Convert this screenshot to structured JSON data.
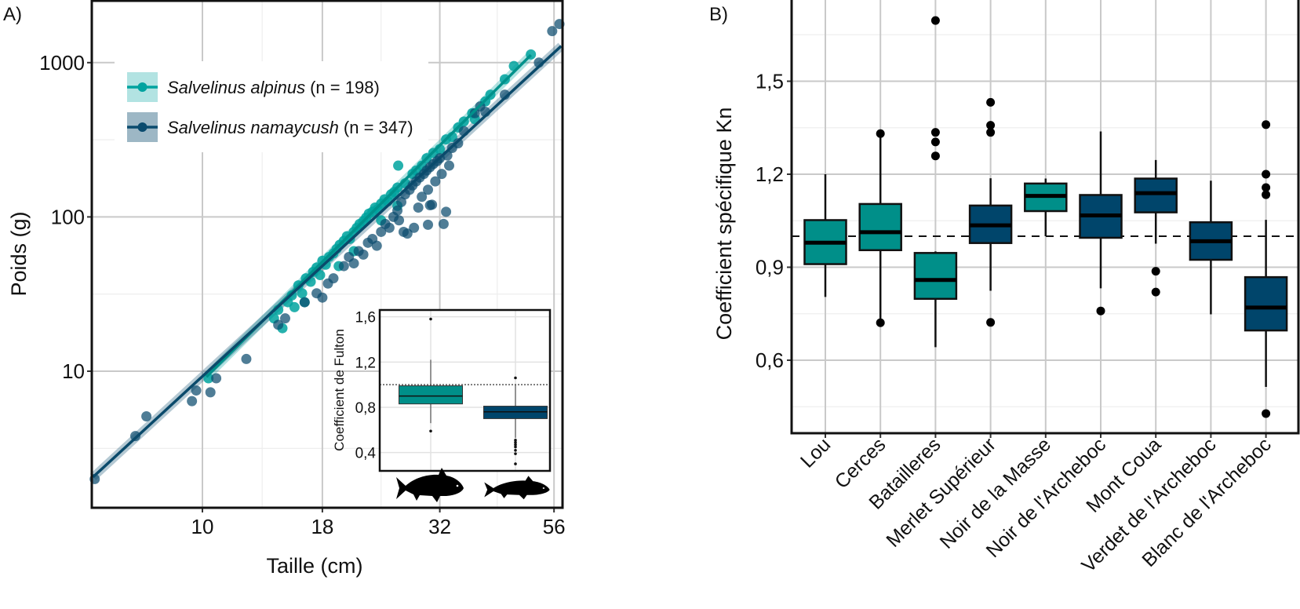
{
  "panel_labels": {
    "a": "A)",
    "b": "B)"
  },
  "colors": {
    "alpinus": "#00a39f",
    "namaycush": "#0b4b6e",
    "box_teal": "#008f89",
    "box_dark": "#00456b",
    "grid": "#c9c9c9"
  },
  "chart_data": [
    {
      "type": "scatter",
      "panel": "A",
      "xlabel": "Taille (cm)",
      "ylabel": "Poids (g)",
      "x_scale": "log",
      "y_scale": "log",
      "x_ticks": [
        10,
        18,
        32,
        56
      ],
      "x_tick_labels": [
        "10",
        "18",
        "32",
        "56"
      ],
      "y_ticks": [
        10,
        100,
        1000
      ],
      "y_tick_labels": [
        "10",
        "100",
        "1000"
      ],
      "grid": true,
      "legend_position": "top-left",
      "series": [
        {
          "name": "Salvelinus alpinus",
          "n_label": "(n = 198)",
          "color": "#00a39f",
          "fit": {
            "from": [
              10.2,
              9.2
            ],
            "to": [
              50,
              1120
            ]
          },
          "points": [
            [
              10.3,
              9
            ],
            [
              14.2,
              22
            ],
            [
              14.5,
              25
            ],
            [
              14.8,
              19
            ],
            [
              15.2,
              28
            ],
            [
              15.5,
              31
            ],
            [
              15.7,
              26
            ],
            [
              16,
              36
            ],
            [
              16.3,
              32
            ],
            [
              16.5,
              28
            ],
            [
              16.6,
              40
            ],
            [
              17,
              38
            ],
            [
              17.2,
              44
            ],
            [
              17.5,
              47
            ],
            [
              17.8,
              42
            ],
            [
              18,
              52
            ],
            [
              18.3,
              49
            ],
            [
              18.6,
              55
            ],
            [
              19,
              58
            ],
            [
              19.3,
              62
            ],
            [
              19.5,
              48
            ],
            [
              19.6,
              66
            ],
            [
              20,
              70
            ],
            [
              20.3,
              75
            ],
            [
              20.6,
              72
            ],
            [
              21,
              80
            ],
            [
              21,
              60
            ],
            [
              21.3,
              85
            ],
            [
              21.6,
              90
            ],
            [
              22,
              94
            ],
            [
              22.3,
              99
            ],
            [
              22.6,
              105
            ],
            [
              23,
              108
            ],
            [
              23.3,
              115
            ],
            [
              23.6,
              112
            ],
            [
              24,
              122
            ],
            [
              24,
              95
            ],
            [
              24.4,
              130
            ],
            [
              24.8,
              126
            ],
            [
              25.2,
              140
            ],
            [
              25.6,
              145
            ],
            [
              26,
              155
            ],
            [
              26,
              118
            ],
            [
              26.1,
              215
            ],
            [
              27,
              165
            ],
            [
              28,
              190
            ],
            [
              28.5,
              200
            ],
            [
              29.3,
              215
            ],
            [
              30,
              240
            ],
            [
              31,
              260
            ],
            [
              32,
              275
            ],
            [
              33,
              318
            ],
            [
              34,
              330
            ],
            [
              35,
              380
            ],
            [
              36,
              415
            ],
            [
              37.5,
              470
            ],
            [
              38,
              430
            ],
            [
              40,
              560
            ],
            [
              41,
              620
            ],
            [
              44,
              780
            ],
            [
              46,
              950
            ],
            [
              50,
              1130
            ]
          ]
        },
        {
          "name": "Salvelinus namaycush",
          "n_label": "(n = 347)",
          "color": "#0b4b6e",
          "fit": {
            "from": [
              5.85,
              2.06
            ],
            "to": [
              58,
              1280
            ]
          },
          "points": [
            [
              5.9,
              2
            ],
            [
              7.2,
              3.8
            ],
            [
              7.6,
              5.1
            ],
            [
              9.5,
              6.4
            ],
            [
              9.7,
              7.5
            ],
            [
              10.4,
              7.3
            ],
            [
              10.7,
              9
            ],
            [
              12.4,
              12
            ],
            [
              14.5,
              20
            ],
            [
              15,
              22
            ],
            [
              16.5,
              28
            ],
            [
              17.5,
              32
            ],
            [
              18,
              30
            ],
            [
              18.5,
              37
            ],
            [
              19,
              40
            ],
            [
              20,
              48
            ],
            [
              20.5,
              55
            ],
            [
              21,
              50
            ],
            [
              21.5,
              60
            ],
            [
              22,
              57
            ],
            [
              22.5,
              68
            ],
            [
              23,
              72
            ],
            [
              23.5,
              65
            ],
            [
              24,
              80
            ],
            [
              24.5,
              90
            ],
            [
              25,
              85
            ],
            [
              25.5,
              100
            ],
            [
              26,
              110
            ],
            [
              26.2,
              95
            ],
            [
              26.5,
              125
            ],
            [
              26.8,
              80
            ],
            [
              27,
              140
            ],
            [
              27.3,
              78
            ],
            [
              27.6,
              150
            ],
            [
              28,
              160
            ],
            [
              28.2,
              85
            ],
            [
              28.5,
              170
            ],
            [
              28.8,
              115
            ],
            [
              29,
              180
            ],
            [
              29.3,
              135
            ],
            [
              29.6,
              190
            ],
            [
              30,
              200
            ],
            [
              30.2,
              150
            ],
            [
              30.2,
              89
            ],
            [
              30.5,
              210
            ],
            [
              30.5,
              119
            ],
            [
              30.8,
              120
            ],
            [
              31,
              220
            ],
            [
              31.3,
              170
            ],
            [
              31.6,
              230
            ],
            [
              32,
              240
            ],
            [
              32.3,
              190
            ],
            [
              32.6,
              90
            ],
            [
              33,
              108
            ],
            [
              33.2,
              250
            ],
            [
              33.5,
              215
            ],
            [
              34,
              280
            ],
            [
              35,
              300
            ],
            [
              36,
              360
            ],
            [
              38,
              470
            ],
            [
              39,
              520
            ],
            [
              40,
              480
            ],
            [
              44,
              620
            ],
            [
              52,
              1000
            ],
            [
              55.5,
              1600
            ],
            [
              57.5,
              1780
            ]
          ]
        }
      ]
    },
    {
      "type": "boxplot",
      "panel": "A-inset",
      "ylabel": "Coefficient de Fulton",
      "y_ticks": [
        0.4,
        0.8,
        1.2,
        1.6
      ],
      "y_tick_labels": [
        "0,4",
        "0,8",
        "1,2",
        "1,6"
      ],
      "reference_line": 1.0,
      "grid": true,
      "boxes": [
        {
          "species": "Salvelinus alpinus",
          "icon": "fish-alpinus-icon",
          "color": "#008f89",
          "whisker_low": 0.66,
          "q1": 0.83,
          "median": 0.9,
          "q3": 0.99,
          "whisker_high": 1.22,
          "outliers": [
            1.58,
            0.59
          ]
        },
        {
          "species": "Salvelinus namaycush",
          "icon": "fish-namaycush-icon",
          "color": "#00456b",
          "whisker_low": 0.53,
          "q1": 0.7,
          "median": 0.76,
          "q3": 0.81,
          "whisker_high": 1.0,
          "outliers": [
            1.06,
            0.51,
            0.49,
            0.47,
            0.45,
            0.42,
            0.39,
            0.3
          ]
        }
      ]
    },
    {
      "type": "boxplot",
      "panel": "B",
      "ylabel": "Coefficient spécifique Kn",
      "y_ticks": [
        0.6,
        0.9,
        1.2,
        1.5
      ],
      "y_tick_labels": [
        "0,6",
        "0,9",
        "1,2",
        "1,5"
      ],
      "reference_line": 1.0,
      "grid": true,
      "categories": [
        "Lou",
        "Cerces",
        "Batailleres",
        "Merlet Supérieur",
        "Noir de la Masse",
        "Noir de l'Archeboc",
        "Mont Coua",
        "Verdet de l'Archeboc",
        "Blanc de l'Archeboc"
      ],
      "boxes": [
        {
          "color": "#008f89",
          "whisker_low": 0.804,
          "q1": 0.91,
          "median": 0.979,
          "q3": 1.052,
          "whisker_high": 1.2,
          "outliers": []
        },
        {
          "color": "#008f89",
          "whisker_low": 0.731,
          "q1": 0.955,
          "median": 1.013,
          "q3": 1.104,
          "whisker_high": 1.331,
          "outliers": [
            1.331,
            0.721
          ]
        },
        {
          "color": "#008f89",
          "whisker_low": 0.642,
          "q1": 0.798,
          "median": 0.859,
          "q3": 0.946,
          "whisker_high": 0.951,
          "outliers": [
            1.696,
            1.335,
            1.304,
            1.259
          ]
        },
        {
          "color": "#00456b",
          "whisker_low": 0.824,
          "q1": 0.978,
          "median": 1.035,
          "q3": 1.099,
          "whisker_high": 1.187,
          "outliers": [
            1.432,
            1.358,
            1.335,
            0.722
          ]
        },
        {
          "color": "#008f89",
          "whisker_low": 1.0,
          "q1": 1.081,
          "median": 1.13,
          "q3": 1.17,
          "whisker_high": 1.186,
          "outliers": []
        },
        {
          "color": "#00456b",
          "whisker_low": 0.832,
          "q1": 0.995,
          "median": 1.067,
          "q3": 1.133,
          "whisker_high": 1.338,
          "outliers": [
            0.759
          ]
        },
        {
          "color": "#00456b",
          "whisker_low": 0.976,
          "q1": 1.077,
          "median": 1.139,
          "q3": 1.186,
          "whisker_high": 1.246,
          "outliers": [
            0.887,
            0.82
          ]
        },
        {
          "color": "#00456b",
          "whisker_low": 0.748,
          "q1": 0.924,
          "median": 0.984,
          "q3": 1.045,
          "whisker_high": 1.179,
          "outliers": []
        },
        {
          "color": "#00456b",
          "whisker_low": 0.514,
          "q1": 0.696,
          "median": 0.77,
          "q3": 0.868,
          "whisker_high": 1.053,
          "outliers": [
            1.36,
            1.2,
            1.157,
            1.134,
            0.428
          ]
        }
      ]
    }
  ]
}
